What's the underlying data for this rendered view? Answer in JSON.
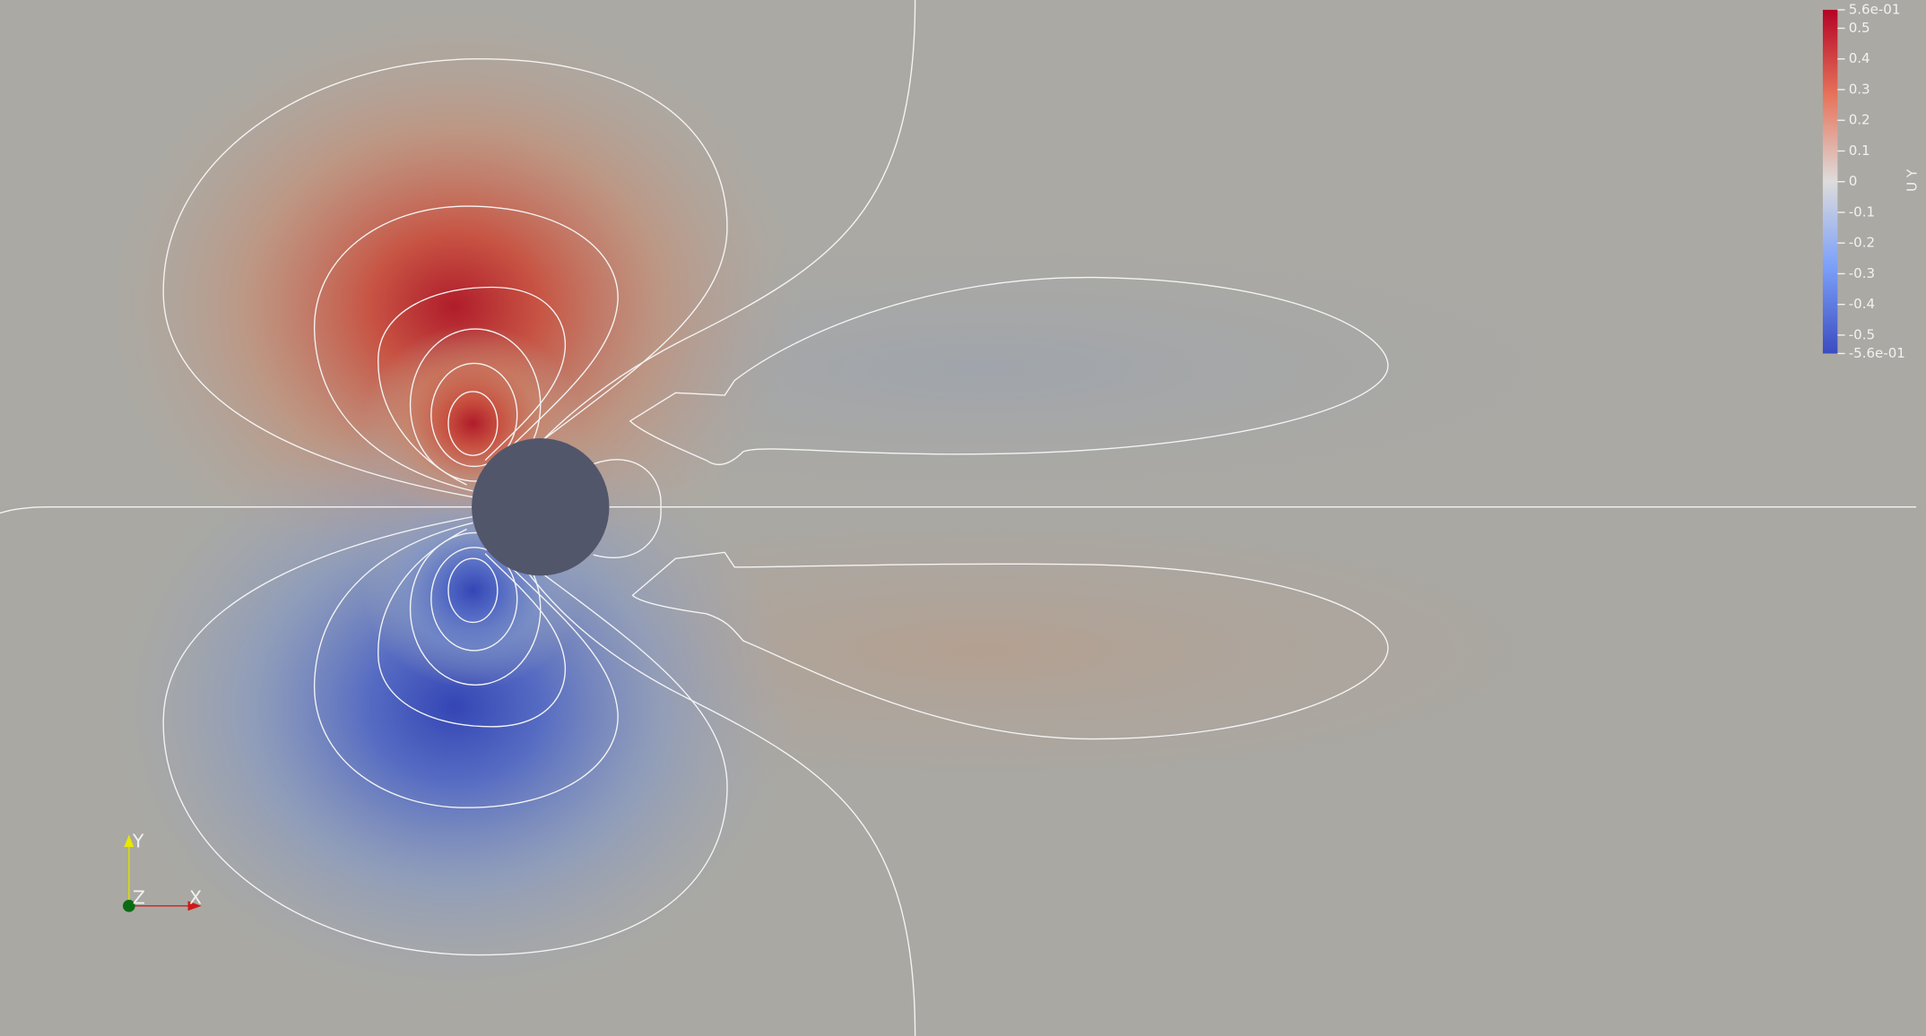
{
  "colorbar": {
    "title": "U Y",
    "max": {
      "value": 0.56,
      "label": "5.6e-01"
    },
    "min": {
      "value": -0.56,
      "label": "-5.6e-01"
    },
    "ticks": [
      0.5,
      0.4,
      0.3,
      0.2,
      0.1,
      0,
      -0.1,
      -0.2,
      -0.3,
      -0.4,
      -0.5
    ]
  },
  "axes_triad": {
    "x": "X",
    "y": "Y",
    "z": "Z"
  }
}
